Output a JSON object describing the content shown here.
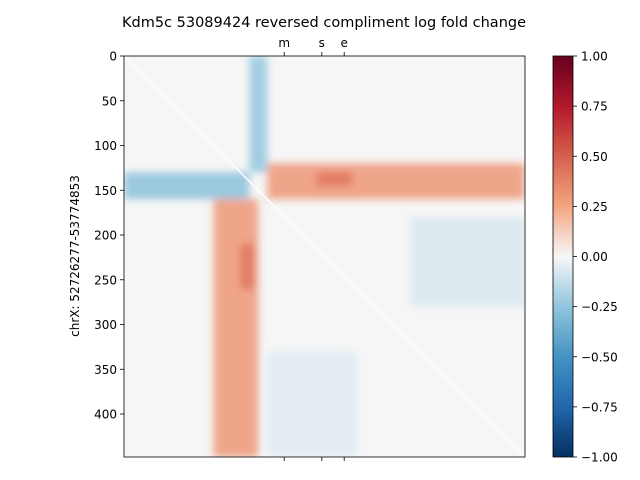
{
  "chart_data": {
    "type": "heatmap",
    "title": "Kdm5c 53089424 reversed compliment log fold change",
    "xlabel": "",
    "ylabel": "chrX: 52726277-53774853",
    "matrix_size": 448,
    "y_ticks": [
      0,
      50,
      100,
      150,
      200,
      250,
      300,
      350,
      400
    ],
    "top_ticks": [
      {
        "label": "m",
        "position": 179
      },
      {
        "label": "s",
        "position": 221
      },
      {
        "label": "e",
        "position": 246
      }
    ],
    "bottom_tick_positions": [
      179,
      221,
      246
    ],
    "colorbar": {
      "colormap": "RdBu_r",
      "range": [
        -1.0,
        1.0
      ],
      "ticks": [
        "1.00",
        "0.75",
        "0.50",
        "0.25",
        "0.00",
        "−0.25",
        "−0.50",
        "−0.75",
        "−1.00"
      ]
    },
    "features": [
      {
        "kind": "blue_band",
        "rows": [
          130,
          160
        ],
        "cols": [
          0,
          140
        ],
        "value": -0.28
      },
      {
        "kind": "blue_band",
        "rows": [
          0,
          130
        ],
        "cols": [
          140,
          160
        ],
        "value": -0.25
      },
      {
        "kind": "red_band",
        "rows": [
          120,
          160
        ],
        "cols": [
          160,
          448
        ],
        "value": 0.3
      },
      {
        "kind": "red_band",
        "rows": [
          160,
          448
        ],
        "cols": [
          100,
          150
        ],
        "value": 0.3
      },
      {
        "kind": "red_spot",
        "rows": [
          130,
          145
        ],
        "cols": [
          215,
          255
        ],
        "value": 0.42
      },
      {
        "kind": "red_spot",
        "rows": [
          210,
          260
        ],
        "cols": [
          130,
          145
        ],
        "value": 0.42
      },
      {
        "kind": "blue_region",
        "rows": [
          180,
          280
        ],
        "cols": [
          320,
          448
        ],
        "value": -0.08
      },
      {
        "kind": "blue_region",
        "rows": [
          330,
          448
        ],
        "cols": [
          160,
          260
        ],
        "value": -0.06
      }
    ]
  }
}
